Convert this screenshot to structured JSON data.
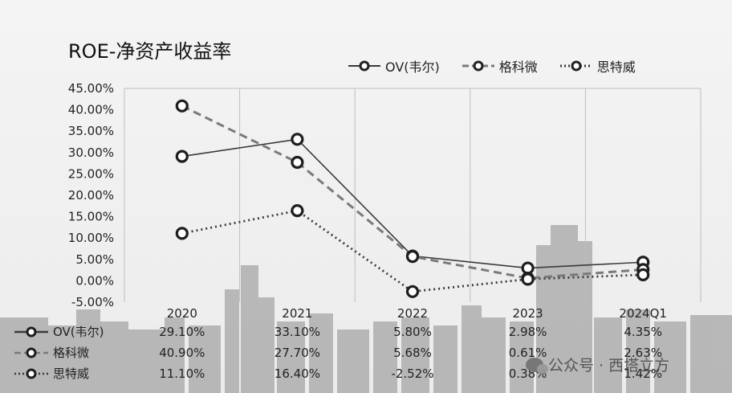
{
  "chart_data": {
    "type": "line",
    "title": "ROE-净资产收益率",
    "categories": [
      "2020",
      "2021",
      "2022",
      "2023",
      "2024Q1"
    ],
    "ylim": [
      -0.05,
      0.45
    ],
    "ytick_labels": [
      "45.00%",
      "40.00%",
      "35.00%",
      "30.00%",
      "25.00%",
      "20.00%",
      "15.00%",
      "10.00%",
      "5.00%",
      "0.00%",
      "-5.00%"
    ],
    "grid": "vertical",
    "legend_position": "top-right",
    "series": [
      {
        "name": "OV(韦尔)",
        "style": "solid",
        "values": [
          0.291,
          0.331,
          0.058,
          0.0298,
          0.0435
        ],
        "labels": [
          "29.10%",
          "33.10%",
          "5.80%",
          "2.98%",
          "4.35%"
        ]
      },
      {
        "name": "格科微",
        "style": "dashed",
        "values": [
          0.409,
          0.277,
          0.0568,
          0.0061,
          0.0263
        ],
        "labels": [
          "40.90%",
          "27.70%",
          "5.68%",
          "0.61%",
          "2.63%"
        ]
      },
      {
        "name": "思特威",
        "style": "dotted",
        "values": [
          0.111,
          0.164,
          -0.0252,
          0.0038,
          0.0142
        ],
        "labels": [
          "11.10%",
          "16.40%",
          "-2.52%",
          "0.38%",
          "1.42%"
        ]
      }
    ]
  },
  "watermark": {
    "text": "公众号 · 西塔立方"
  },
  "colors": {
    "line": "#3a3a3a",
    "dashed": "#7a7a7a",
    "grid": "#bfbfbf",
    "text": "#222222",
    "skyline": "#8c8c8c"
  }
}
